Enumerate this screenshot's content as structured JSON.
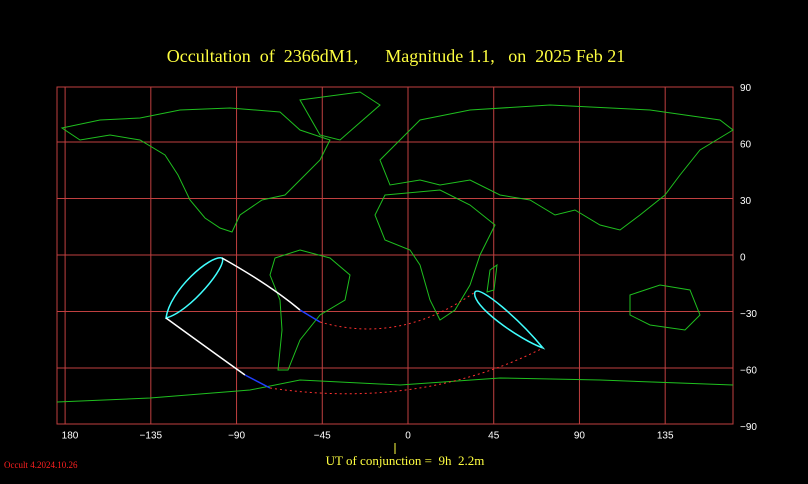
{
  "title": "Occultation  of  2366dM1,      Magnitude 1.1,   on  2025 Feb 21",
  "lon_ticks": [
    {
      "value": -180,
      "label": "180"
    },
    {
      "value": -135,
      "label": "−135"
    },
    {
      "value": -90,
      "label": "−90"
    },
    {
      "value": -45,
      "label": "−45"
    },
    {
      "value": 0,
      "label": "0"
    },
    {
      "value": 45,
      "label": "45"
    },
    {
      "value": 90,
      "label": "90"
    },
    {
      "value": 135,
      "label": "135"
    }
  ],
  "lat_ticks": [
    {
      "value": 90,
      "label": "90"
    },
    {
      "value": 60,
      "label": "60"
    },
    {
      "value": 30,
      "label": "30"
    },
    {
      "value": 0,
      "label": "0"
    },
    {
      "value": -30,
      "label": "−30"
    },
    {
      "value": -60,
      "label": "−60"
    },
    {
      "value": -90,
      "label": "−90"
    }
  ],
  "conjunction": "UT of conjunction =  9h  2.2m",
  "version": "Occult 4.2024.10.26"
}
